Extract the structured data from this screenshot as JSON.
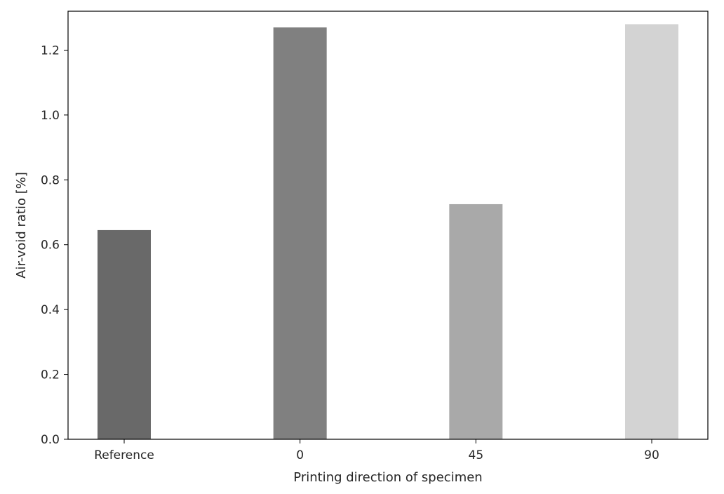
{
  "chart_data": {
    "type": "bar",
    "categories": [
      "Reference",
      "0",
      "45",
      "90"
    ],
    "values": [
      0.645,
      1.27,
      0.725,
      1.28
    ],
    "bar_colors": [
      "#696969",
      "#808080",
      "#a9a9a9",
      "#d3d3d3"
    ],
    "xlabel": "Printing direction of specimen",
    "ylabel": "Air-void ratio [%]",
    "ylim": [
      0,
      1.32
    ],
    "yticks": [
      0.0,
      0.2,
      0.4,
      0.6,
      0.8,
      1.0,
      1.2
    ],
    "ytick_labels": [
      "0.0",
      "0.2",
      "0.4",
      "0.6",
      "0.8",
      "1.0",
      "1.2"
    ],
    "grid": false,
    "legend": "none"
  }
}
